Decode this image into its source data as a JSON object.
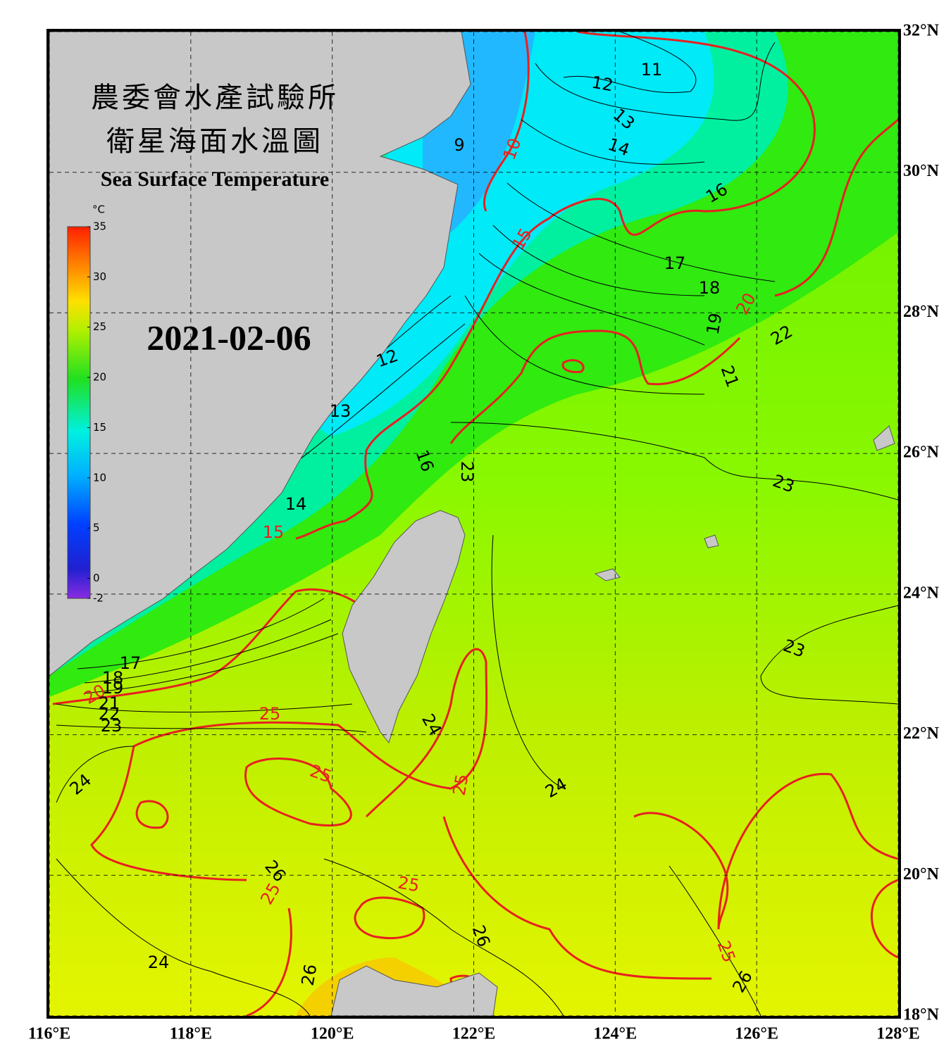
{
  "title_zh_1": "農委會水產試驗所",
  "title_zh_2": "衛星海面水溫圖",
  "title_en": "Sea Surface Temperature",
  "date": "2021-02-06",
  "colorbar": {
    "unit": "°C",
    "range": [
      -2,
      35
    ],
    "ticks": [
      35,
      30,
      25,
      20,
      15,
      10,
      5,
      0,
      -2
    ]
  },
  "map": {
    "lon_range": [
      116,
      128
    ],
    "lat_range": [
      18,
      32
    ],
    "lon_ticks": [
      {
        "value": 116,
        "label": "116°E"
      },
      {
        "value": 118,
        "label": "118°E"
      },
      {
        "value": 120,
        "label": "120°E"
      },
      {
        "value": 122,
        "label": "122°E"
      },
      {
        "value": 124,
        "label": "124°E"
      },
      {
        "value": 126,
        "label": "126°E"
      },
      {
        "value": 128,
        "label": "128°E"
      }
    ],
    "lat_ticks": [
      {
        "value": 18,
        "label": "18°N"
      },
      {
        "value": 20,
        "label": "20°N"
      },
      {
        "value": 22,
        "label": "22°N"
      },
      {
        "value": 24,
        "label": "24°N"
      },
      {
        "value": 26,
        "label": "26°N"
      },
      {
        "value": 28,
        "label": "28°N"
      },
      {
        "value": 30,
        "label": "30°N"
      },
      {
        "value": 32,
        "label": "32°N"
      }
    ]
  },
  "contour_labels": [
    11,
    12,
    13,
    14,
    9,
    10,
    15,
    16,
    17,
    18,
    19,
    20,
    22,
    21,
    12,
    13,
    14,
    15,
    16,
    23,
    23,
    17,
    18,
    19,
    20,
    21,
    22,
    23,
    25,
    24,
    25,
    25,
    24,
    24,
    26,
    25,
    25,
    26,
    24,
    26,
    25,
    26,
    23
  ]
}
